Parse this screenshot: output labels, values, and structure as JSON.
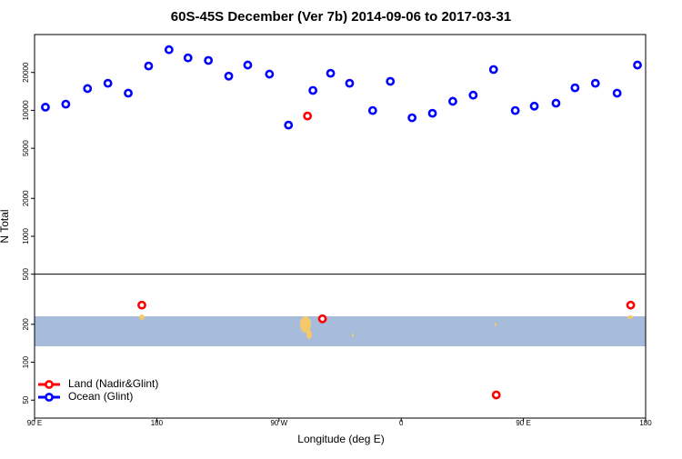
{
  "chart_data": {
    "type": "scatter",
    "title": "60S-45S December (Ver 7b)   2014-09-06 to 2017-03-31",
    "xlabel": "Longitude (deg E)",
    "ylabel": "N Total",
    "xlim": [
      90,
      540
    ],
    "xticks": [
      {
        "value": 90,
        "label": "90 E"
      },
      {
        "value": 180,
        "label": "180"
      },
      {
        "value": 270,
        "label": "90 W"
      },
      {
        "value": 360,
        "label": "0"
      },
      {
        "value": 450,
        "label": "90 E"
      },
      {
        "value": 540,
        "label": "180"
      }
    ],
    "ylim": [
      36,
      40000
    ],
    "yscale": "log",
    "yticks": [
      50,
      100,
      200,
      500,
      1000,
      2000,
      5000,
      10000,
      20000
    ],
    "legend": "lower left",
    "series": [
      {
        "name": "Land (Nadir&Glint)",
        "color": "#ff0000",
        "x": [
          169,
          291,
          302,
          430,
          529
        ],
        "values": [
          284,
          9020,
          221,
          55,
          284
        ]
      },
      {
        "name": "Ocean (Glint)",
        "color": "#0000ff",
        "x": [
          98,
          113,
          129,
          144,
          159,
          174,
          189,
          203,
          218,
          233,
          247,
          263,
          277,
          295,
          308,
          322,
          339,
          352,
          368,
          383,
          398,
          413,
          428,
          444,
          458,
          474,
          488,
          503,
          519,
          534
        ],
        "values": [
          10600,
          11200,
          14900,
          16400,
          13700,
          22500,
          30300,
          26100,
          24900,
          18700,
          22900,
          19400,
          7640,
          14400,
          19700,
          16400,
          9970,
          17000,
          8730,
          9480,
          11800,
          13200,
          21100,
          9970,
          10800,
          11400,
          15100,
          16400,
          13700,
          22900
        ]
      }
    ]
  }
}
